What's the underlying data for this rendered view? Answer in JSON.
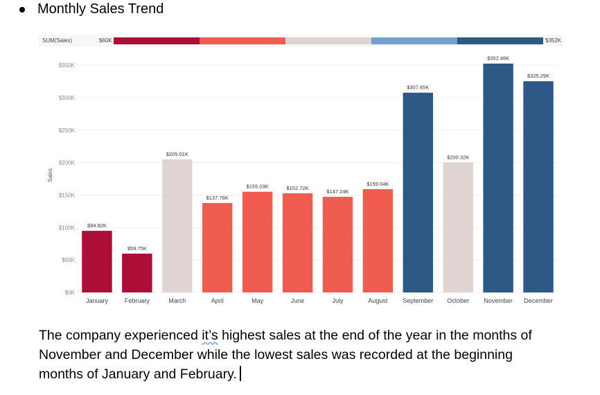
{
  "heading": {
    "text": "Monthly Sales Trend"
  },
  "legend": {
    "label": "SUM(Sales)",
    "min_label": "$60K",
    "max_label": "$352K",
    "colors": [
      "#ac0e38",
      "#f05c4f",
      "#dfd4d2",
      "#729fcb",
      "#2e5987"
    ]
  },
  "chart_data": {
    "type": "bar",
    "title": "Monthly Sales Trend",
    "ylabel": "Sales",
    "xlabel": "",
    "ylim": [
      0,
      365000
    ],
    "yticks": [
      0,
      50000,
      100000,
      150000,
      200000,
      250000,
      300000,
      350000
    ],
    "ytick_labels": [
      "$0K",
      "$50K",
      "$100K",
      "$150K",
      "$200K",
      "$250K",
      "$300K",
      "$350K"
    ],
    "categories": [
      "January",
      "February",
      "March",
      "April",
      "May",
      "June",
      "July",
      "August",
      "September",
      "October",
      "November",
      "December"
    ],
    "values": [
      94920,
      59750,
      205010,
      137760,
      155030,
      152720,
      147240,
      159040,
      307650,
      200320,
      352460,
      325290
    ],
    "value_labels": [
      "$94.92K",
      "$59.75K",
      "$205.01K",
      "$137.76K",
      "$155.03K",
      "$152.72K",
      "$147.24K",
      "$159.04K",
      "$307.65K",
      "$200.32K",
      "$352.46K",
      "$325.29K"
    ],
    "bar_colors": [
      "#ac0e38",
      "#ac0e38",
      "#dfd4d2",
      "#f05c4f",
      "#f05c4f",
      "#f05c4f",
      "#f05c4f",
      "#f05c4f",
      "#2e5987",
      "#dfd4d2",
      "#2e5987",
      "#2e5987"
    ],
    "grid": true,
    "legend_position": "top"
  },
  "paragraph": {
    "before": "The company experienced ",
    "flagged_word": "it’s",
    "after": " highest sales at the end of the year in the months of November and December while the lowest sales was recorded at the beginning months of January and February."
  }
}
